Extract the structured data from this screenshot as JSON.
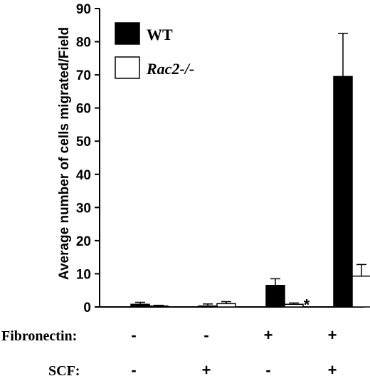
{
  "chart_data": {
    "type": "bar",
    "ylabel": "Average number of cells migrated/Field",
    "ylim": [
      0,
      90
    ],
    "yticks": [
      "0",
      "10",
      "20",
      "30",
      "40",
      "50",
      "60",
      "70",
      "80",
      "90"
    ],
    "grid": false,
    "legend_position": "top-left",
    "conditions": [
      {
        "fibronectin": "-",
        "scf": "-"
      },
      {
        "fibronectin": "-",
        "scf": "+"
      },
      {
        "fibronectin": "+",
        "scf": "-"
      },
      {
        "fibronectin": "+",
        "scf": "+"
      }
    ],
    "row_labels": {
      "fibronectin": "Fibronectin:",
      "scf": "SCF:"
    },
    "series": [
      {
        "name": "WT",
        "color": "#000000",
        "values": [
          0.8,
          0.3,
          6.5,
          69.5
        ],
        "errors": [
          0.6,
          0.6,
          2.0,
          13.0
        ],
        "significance": [
          "",
          "",
          "",
          ""
        ]
      },
      {
        "name": "Rac2-/-",
        "color": "#ffffff",
        "values": [
          0.3,
          1.0,
          0.8,
          9.3
        ],
        "errors": [
          0.2,
          0.6,
          0.4,
          3.5
        ],
        "significance": [
          "",
          "",
          "*",
          "*"
        ]
      }
    ]
  }
}
